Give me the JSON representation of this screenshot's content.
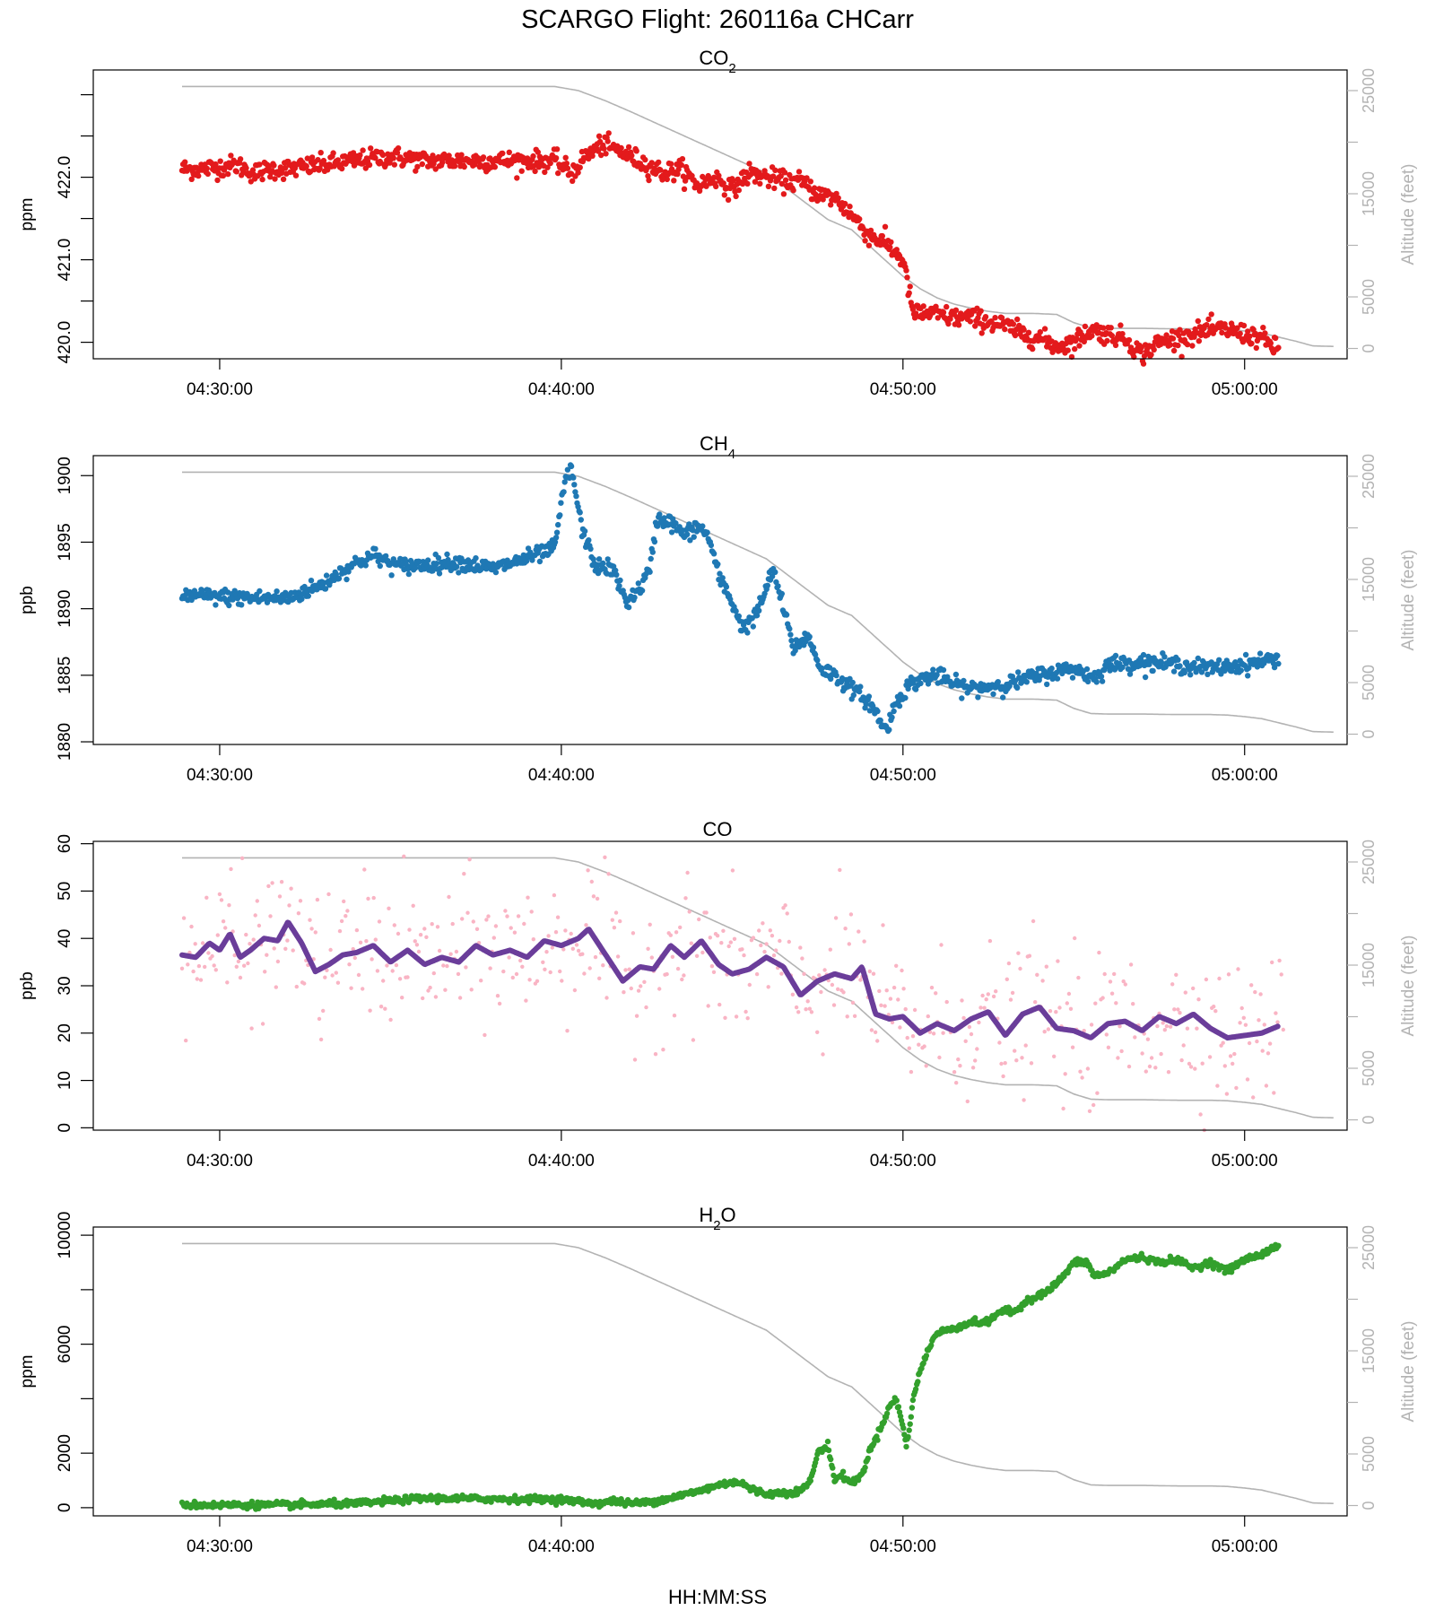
{
  "figure": {
    "title": "SCARGO Flight: 260116a  CHCarr",
    "xlabel": "HH:MM:SS",
    "x_ticks": [
      "04:30:00",
      "04:40:00",
      "04:50:00",
      "05:00:00"
    ],
    "x_tick_minutes": [
      30,
      40,
      50,
      60
    ],
    "x_range_minutes": [
      26.3,
      63.0
    ]
  },
  "colors": {
    "co2": "#e31a1c",
    "ch4": "#1f78b4",
    "co_raw": "#f9b4c4",
    "co_smooth": "#6a3d9a",
    "h2o": "#33a02c",
    "altitude": "#b3b3b3",
    "axis": "#000000"
  },
  "altitude_axis": {
    "label": "Altitude (feet)",
    "range": [
      -1000,
      27000
    ],
    "ticks": [
      0,
      5000,
      15000,
      25000
    ],
    "tick_labels": [
      "0",
      "5000",
      "15000",
      "25000"
    ],
    "minor_ticks": [
      10000,
      20000
    ],
    "profile_minutes": [
      28.9,
      39.8,
      40.5,
      41.3,
      42.0,
      43.0,
      44.0,
      45.0,
      46.0,
      47.0,
      47.8,
      48.5,
      49.0,
      49.5,
      50.0,
      50.5,
      51.0,
      51.5,
      52.0,
      52.5,
      53.0,
      53.8,
      54.5,
      55.0,
      55.5,
      56.0,
      56.5,
      57.0,
      58.0,
      59.0,
      59.5,
      60.0,
      60.5,
      61.0,
      61.5,
      62.0,
      62.6
    ],
    "profile_feet": [
      25400,
      25400,
      25000,
      24000,
      23000,
      21500,
      20000,
      18500,
      17000,
      14500,
      12500,
      11500,
      10000,
      8500,
      7000,
      5800,
      4900,
      4300,
      3900,
      3600,
      3400,
      3400,
      3300,
      2500,
      2000,
      1950,
      1950,
      1950,
      1900,
      1900,
      1850,
      1700,
      1500,
      1100,
      700,
      250,
      200
    ]
  },
  "chart_data": [
    {
      "type": "scatter",
      "key": "co2",
      "title_main": "CO",
      "title_sub": "2",
      "ylabel": "ppm",
      "ylim": [
        419.8,
        423.3
      ],
      "y_ticks": [
        420.0,
        421.0,
        422.0
      ],
      "y_tick_labels": [
        "420.0",
        "421.0",
        "422.0"
      ],
      "y_minor_ticks": [
        420.5,
        421.5,
        422.5,
        423.0
      ],
      "x_minutes": [
        28.9,
        29.5,
        30.5,
        31.0,
        31.5,
        32.0,
        33.0,
        34.0,
        35.0,
        36.0,
        37.0,
        38.0,
        39.0,
        39.8,
        40.3,
        40.7,
        41.2,
        41.8,
        42.5,
        43.0,
        43.5,
        44.0,
        44.5,
        45.0,
        45.5,
        46.0,
        46.5,
        47.0,
        47.5,
        48.0,
        48.5,
        49.0,
        49.5,
        50.0,
        50.3,
        50.8,
        51.5,
        52.0,
        52.5,
        53.0,
        53.5,
        54.0,
        54.5,
        55.0,
        55.5,
        56.0,
        56.5,
        57.0,
        57.5,
        58.0,
        58.5,
        59.0,
        59.5,
        60.0,
        60.5,
        61.0
      ],
      "values": [
        422.1,
        422.1,
        422.15,
        422.05,
        422.1,
        422.1,
        422.15,
        422.2,
        422.25,
        422.2,
        422.2,
        422.2,
        422.2,
        422.2,
        422.05,
        422.25,
        422.4,
        422.3,
        422.15,
        422.05,
        422.1,
        421.9,
        422.0,
        421.85,
        422.05,
        422.0,
        421.95,
        421.95,
        421.8,
        421.75,
        421.55,
        421.3,
        421.2,
        421.0,
        420.35,
        420.35,
        420.3,
        420.3,
        420.25,
        420.2,
        420.1,
        420.05,
        419.95,
        420.0,
        420.15,
        420.1,
        420.05,
        419.85,
        420.0,
        420.05,
        420.1,
        420.15,
        420.15,
        420.1,
        420.05,
        419.9
      ],
      "noise": 0.06,
      "mark": "dot"
    },
    {
      "type": "scatter",
      "key": "ch4",
      "title_main": "CH",
      "title_sub": "4",
      "ylabel": "ppb",
      "ylim": [
        1879.8,
        1901.5
      ],
      "y_ticks": [
        1880,
        1885,
        1890,
        1895,
        1900
      ],
      "y_tick_labels": [
        "1880",
        "1885",
        "1890",
        "1895",
        "1900"
      ],
      "y_minor_ticks": [],
      "x_minutes": [
        28.9,
        30.0,
        31.0,
        32.0,
        33.0,
        33.8,
        34.5,
        35.2,
        36.0,
        37.0,
        38.0,
        39.0,
        39.8,
        40.1,
        40.3,
        40.6,
        41.0,
        41.5,
        41.9,
        42.3,
        42.6,
        42.8,
        43.2,
        43.6,
        44.0,
        44.3,
        44.6,
        45.0,
        45.3,
        45.7,
        46.0,
        46.2,
        46.5,
        46.8,
        47.2,
        47.6,
        48.0,
        48.5,
        49.0,
        49.3,
        49.5,
        49.8,
        50.2,
        50.6,
        51.0,
        51.5,
        52.0,
        53.0,
        54.0,
        55.0,
        55.6,
        56.0,
        57.0,
        58.0,
        59.0,
        60.0,
        61.0
      ],
      "values": [
        1891.0,
        1890.9,
        1890.8,
        1890.8,
        1891.8,
        1893.2,
        1894.0,
        1893.2,
        1893.3,
        1893.5,
        1893.0,
        1893.8,
        1894.5,
        1899.5,
        1900.5,
        1896.0,
        1893.2,
        1893.0,
        1890.5,
        1891.5,
        1893.0,
        1896.8,
        1896.5,
        1895.5,
        1896.2,
        1895.5,
        1892.5,
        1890.5,
        1888.5,
        1889.5,
        1891.5,
        1893.0,
        1890.0,
        1887.0,
        1888.0,
        1885.5,
        1885.0,
        1884.0,
        1883.0,
        1881.8,
        1880.8,
        1883.0,
        1884.3,
        1884.8,
        1885.0,
        1884.3,
        1884.0,
        1884.3,
        1885.0,
        1885.5,
        1884.8,
        1885.8,
        1886.0,
        1885.8,
        1885.5,
        1885.8,
        1886.3
      ],
      "noise": 0.3,
      "mark": "dot"
    },
    {
      "type": "scatter",
      "key": "co",
      "title_main": "CO",
      "title_sub": "",
      "ylabel": "ppb",
      "ylim": [
        -0.5,
        60.5
      ],
      "y_ticks": [
        0,
        10,
        20,
        30,
        40,
        50,
        60
      ],
      "y_tick_labels": [
        "0",
        "10",
        "20",
        "30",
        "40",
        "50",
        "60"
      ],
      "y_minor_ticks": [],
      "x_minutes": [
        28.9,
        29.3,
        29.7,
        30.0,
        30.3,
        30.6,
        30.9,
        31.3,
        31.7,
        32.0,
        32.4,
        32.8,
        33.2,
        33.6,
        34.0,
        34.5,
        35.0,
        35.5,
        36.0,
        36.5,
        37.0,
        37.5,
        38.0,
        38.5,
        39.0,
        39.5,
        40.0,
        40.5,
        40.8,
        41.3,
        41.8,
        42.3,
        42.7,
        43.2,
        43.6,
        44.1,
        44.6,
        45.0,
        45.5,
        46.0,
        46.5,
        47.0,
        47.5,
        48.0,
        48.5,
        48.8,
        49.2,
        49.6,
        50.0,
        50.5,
        51.0,
        51.5,
        52.0,
        52.5,
        53.0,
        53.5,
        54.0,
        54.5,
        55.0,
        55.5,
        56.0,
        56.5,
        57.0,
        57.5,
        58.0,
        58.5,
        59.0,
        59.5,
        60.0,
        60.5,
        61.0
      ],
      "values": [
        36.5,
        36.0,
        39.0,
        37.5,
        41.0,
        36.0,
        37.5,
        40.0,
        39.5,
        43.5,
        39.0,
        33.0,
        34.5,
        36.5,
        37.0,
        38.5,
        35.0,
        37.5,
        34.5,
        36.0,
        35.0,
        38.5,
        36.5,
        37.5,
        36.0,
        39.5,
        38.5,
        40.0,
        42.0,
        36.5,
        31.0,
        34.0,
        33.5,
        38.5,
        36.0,
        39.5,
        34.5,
        32.5,
        33.5,
        36.0,
        34.0,
        28.0,
        31.0,
        32.5,
        31.5,
        34.0,
        24.0,
        23.0,
        23.5,
        20.0,
        22.0,
        20.5,
        23.0,
        24.5,
        19.5,
        24.0,
        25.5,
        21.0,
        20.5,
        19.0,
        22.0,
        22.5,
        20.5,
        23.5,
        22.0,
        24.0,
        21.0,
        19.0,
        19.5,
        20.0,
        21.5
      ],
      "noise": 7.5,
      "mark": "dot+line"
    },
    {
      "type": "scatter",
      "key": "h2o",
      "title_main": "H",
      "title_sub": "2",
      "title_tail": "O",
      "ylabel": "ppm",
      "ylim": [
        -300,
        10300
      ],
      "y_ticks": [
        0,
        2000,
        6000,
        10000
      ],
      "y_tick_labels": [
        "0",
        "2000",
        "6000",
        "10000"
      ],
      "y_minor_ticks": [
        4000,
        8000
      ],
      "x_minutes": [
        28.9,
        32.0,
        34.0,
        35.0,
        36.0,
        38.0,
        40.0,
        41.0,
        41.5,
        42.0,
        42.5,
        43.0,
        43.5,
        44.0,
        44.5,
        45.0,
        45.3,
        45.5,
        46.0,
        47.0,
        47.3,
        47.5,
        47.8,
        48.0,
        48.2,
        48.5,
        48.8,
        49.0,
        49.3,
        49.6,
        49.8,
        50.0,
        50.1,
        50.3,
        50.5,
        50.8,
        51.0,
        51.5,
        52.0,
        52.5,
        52.8,
        53.0,
        53.3,
        53.6,
        54.0,
        54.3,
        54.7,
        55.0,
        55.4,
        55.6,
        56.0,
        56.5,
        57.0,
        57.5,
        58.0,
        58.5,
        59.0,
        59.5,
        60.0,
        60.5,
        61.0
      ],
      "values": [
        100,
        100,
        150,
        250,
        350,
        320,
        300,
        150,
        250,
        150,
        200,
        300,
        450,
        600,
        800,
        950,
        900,
        700,
        500,
        600,
        1000,
        2000,
        2300,
        1000,
        1200,
        900,
        1200,
        2000,
        2800,
        3700,
        4000,
        3000,
        2200,
        4000,
        5000,
        6000,
        6400,
        6600,
        6800,
        6800,
        7200,
        7200,
        7200,
        7600,
        7800,
        8000,
        8500,
        9000,
        9000,
        8500,
        8600,
        9100,
        9200,
        9000,
        9100,
        8800,
        9000,
        8700,
        9100,
        9300,
        9650
      ],
      "noise": 60,
      "mark": "dot"
    }
  ]
}
